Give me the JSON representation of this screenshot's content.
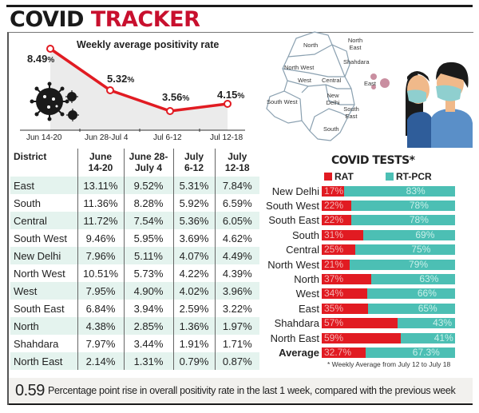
{
  "header": {
    "title_part1": "COVID",
    "title_part2": "TRACKER"
  },
  "chart_data": [
    {
      "type": "line",
      "title": "Weekly average positivity rate",
      "categories": [
        "Jun 14-20",
        "Jun 28-Jul 4",
        "Jul 6-12",
        "Jul 12-18"
      ],
      "values": [
        8.49,
        5.32,
        3.56,
        4.15
      ],
      "labels": [
        "8.49%",
        "5.32%",
        "3.56%",
        "4.15%"
      ],
      "xlabel": "",
      "ylabel": "",
      "grid": false,
      "color": "#e11b22",
      "fill": "#ebebeb"
    },
    {
      "type": "table",
      "columns": [
        "District",
        "June 14-20",
        "June 28-July 4",
        "July 6-12",
        "July 12-18"
      ],
      "rows": [
        [
          "East",
          "13.11%",
          "9.52%",
          "5.31%",
          "7.84%"
        ],
        [
          "South",
          "11.36%",
          "8.28%",
          "5.92%",
          "6.59%"
        ],
        [
          "Central",
          "11.72%",
          "7.54%",
          "5.36%",
          "6.05%"
        ],
        [
          "South West",
          "9.46%",
          "5.95%",
          "3.69%",
          "4.62%"
        ],
        [
          "New Delhi",
          "7.96%",
          "5.11%",
          "4.07%",
          "4.49%"
        ],
        [
          "North West",
          "10.51%",
          "5.73%",
          "4.22%",
          "4.39%"
        ],
        [
          "West",
          "7.95%",
          "4.90%",
          "4.02%",
          "3.96%"
        ],
        [
          "South East",
          "6.84%",
          "3.94%",
          "2.59%",
          "3.22%"
        ],
        [
          "North",
          "4.38%",
          "2.85%",
          "1.36%",
          "1.97%"
        ],
        [
          "Shahdara",
          "7.97%",
          "3.44%",
          "1.91%",
          "1.71%"
        ],
        [
          "North East",
          "2.14%",
          "1.31%",
          "0.79%",
          "0.87%"
        ]
      ]
    },
    {
      "type": "bar",
      "stacked": true,
      "orientation": "horizontal",
      "title": "COVID TESTS*",
      "categories": [
        "New Delhi",
        "South West",
        "South East",
        "South",
        "Central",
        "North West",
        "North",
        "West",
        "East",
        "Shahdara",
        "North East",
        "Average"
      ],
      "series": [
        {
          "name": "RAT",
          "color": "#e11b22",
          "values": [
            17,
            22,
            22,
            31,
            25,
            21,
            37,
            34,
            35,
            57,
            59,
            32.7
          ]
        },
        {
          "name": "RT-PCR",
          "color": "#4cbfb4",
          "values": [
            83,
            78,
            78,
            69,
            75,
            79,
            63,
            66,
            65,
            43,
            41,
            67.3
          ]
        }
      ],
      "legend_position": "top",
      "annotation": "* Weekly Average from July 12 to July 18"
    }
  ],
  "line_chart": {
    "title": "Weekly average positivity rate",
    "points": [
      {
        "value": "8.49",
        "unit": "%",
        "x_label": "Jun 14-20"
      },
      {
        "value": "5.32",
        "unit": "%",
        "x_label": "Jun 28-Jul 4"
      },
      {
        "value": "3.56",
        "unit": "%",
        "x_label": "Jul 6-12"
      },
      {
        "value": "4.15",
        "unit": "%",
        "x_label": "Jul 12-18"
      }
    ]
  },
  "map": {
    "labels": [
      "North",
      "North East",
      "Shahdara",
      "North West",
      "West",
      "Central",
      "East",
      "New Delhi",
      "South West",
      "South East",
      "South"
    ]
  },
  "table": {
    "headers": {
      "district": "District",
      "c1_l1": "June",
      "c1_l2": "14-20",
      "c2_l1": "June 28-",
      "c2_l2": "July 4",
      "c3_l1": "July",
      "c3_l2": "6-12",
      "c4_l1": "July",
      "c4_l2": "12-18"
    },
    "rows": [
      {
        "name": "East",
        "v": [
          "13.11%",
          "9.52%",
          "5.31%",
          "7.84%"
        ]
      },
      {
        "name": "South",
        "v": [
          "11.36%",
          "8.28%",
          "5.92%",
          "6.59%"
        ]
      },
      {
        "name": "Central",
        "v": [
          "11.72%",
          "7.54%",
          "5.36%",
          "6.05%"
        ]
      },
      {
        "name": "South West",
        "v": [
          "9.46%",
          "5.95%",
          "3.69%",
          "4.62%"
        ]
      },
      {
        "name": "New Delhi",
        "v": [
          "7.96%",
          "5.11%",
          "4.07%",
          "4.49%"
        ]
      },
      {
        "name": "North West",
        "v": [
          "10.51%",
          "5.73%",
          "4.22%",
          "4.39%"
        ]
      },
      {
        "name": "West",
        "v": [
          "7.95%",
          "4.90%",
          "4.02%",
          "3.96%"
        ]
      },
      {
        "name": "South East",
        "v": [
          "6.84%",
          "3.94%",
          "2.59%",
          "3.22%"
        ]
      },
      {
        "name": "North",
        "v": [
          "4.38%",
          "2.85%",
          "1.36%",
          "1.97%"
        ]
      },
      {
        "name": "Shahdara",
        "v": [
          "7.97%",
          "3.44%",
          "1.91%",
          "1.71%"
        ]
      },
      {
        "name": "North East",
        "v": [
          "2.14%",
          "1.31%",
          "0.79%",
          "0.87%"
        ]
      }
    ]
  },
  "tests": {
    "title": "COVID TESTS*",
    "legend": {
      "rat": "RAT",
      "pcr": "RT-PCR"
    },
    "rows": [
      {
        "name": "New Delhi",
        "rat": "17%",
        "pcr": "83%",
        "rat_w": 17
      },
      {
        "name": "South West",
        "rat": "22%",
        "pcr": "78%",
        "rat_w": 22
      },
      {
        "name": "South East",
        "rat": "22%",
        "pcr": "78%",
        "rat_w": 22
      },
      {
        "name": "South",
        "rat": "31%",
        "pcr": "69%",
        "rat_w": 31
      },
      {
        "name": "Central",
        "rat": "25%",
        "pcr": "75%",
        "rat_w": 25
      },
      {
        "name": "North West",
        "rat": "21%",
        "pcr": "79%",
        "rat_w": 21
      },
      {
        "name": "North",
        "rat": "37%",
        "pcr": "63%",
        "rat_w": 37
      },
      {
        "name": "West",
        "rat": "34%",
        "pcr": "66%",
        "rat_w": 34
      },
      {
        "name": "East",
        "rat": "35%",
        "pcr": "65%",
        "rat_w": 35
      },
      {
        "name": "Shahdara",
        "rat": "57%",
        "pcr": "43%",
        "rat_w": 57
      },
      {
        "name": "North East",
        "rat": "59%",
        "pcr": "41%",
        "rat_w": 59
      },
      {
        "name": "Average",
        "rat": "32.7%",
        "pcr": "67.3%",
        "rat_w": 32.7
      }
    ],
    "footnote": "* Weekly Average from July 12 to July 18"
  },
  "footer": {
    "value": "0.59",
    "text": "Percentage point rise in overall positivity rate in the last 1 week, compared with the previous week"
  }
}
